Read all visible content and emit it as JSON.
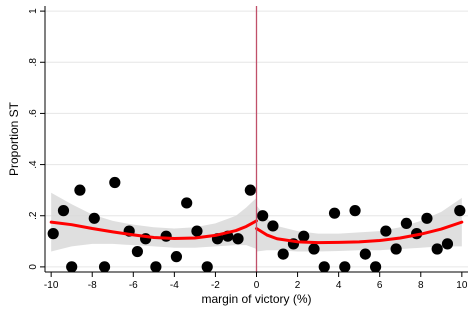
{
  "chart_data": {
    "type": "scatter",
    "title": "",
    "xlabel": "margin of victory (%)",
    "ylabel": "Proportion ST",
    "xlim": [
      -10.3,
      10.3
    ],
    "ylim": [
      -0.02,
      1.02
    ],
    "xticks": [
      -10,
      -8,
      -6,
      -4,
      -2,
      0,
      2,
      4,
      6,
      8,
      10
    ],
    "xtick_labels": [
      "-10",
      "-8",
      "-6",
      "-4",
      "-2",
      "0",
      "2",
      "4",
      "6",
      "8",
      "10"
    ],
    "yticks": [
      0,
      0.2,
      0.4,
      0.6,
      0.8,
      1
    ],
    "ytick_labels": [
      "0",
      ".2",
      ".4",
      ".6",
      ".8",
      "1"
    ],
    "grid": "horizontal",
    "cutoff_x": 0,
    "colors": {
      "points": "#000000",
      "fit": "#ff0000",
      "ci_band": "#d9d9d9",
      "cutoff": "#c0506a",
      "grid": "#e6e6e6"
    },
    "points": [
      {
        "x": -9.9,
        "y": 0.13
      },
      {
        "x": -9.4,
        "y": 0.22
      },
      {
        "x": -9.0,
        "y": 0.0
      },
      {
        "x": -8.6,
        "y": 0.3
      },
      {
        "x": -7.9,
        "y": 0.19
      },
      {
        "x": -7.4,
        "y": 0.0
      },
      {
        "x": -6.9,
        "y": 0.33
      },
      {
        "x": -6.2,
        "y": 0.14
      },
      {
        "x": -5.8,
        "y": 0.06
      },
      {
        "x": -5.4,
        "y": 0.11
      },
      {
        "x": -4.9,
        "y": 0.0
      },
      {
        "x": -4.4,
        "y": 0.12
      },
      {
        "x": -3.9,
        "y": 0.04
      },
      {
        "x": -3.4,
        "y": 0.25
      },
      {
        "x": -2.9,
        "y": 0.14
      },
      {
        "x": -2.4,
        "y": 0.0
      },
      {
        "x": -1.9,
        "y": 0.11
      },
      {
        "x": -1.4,
        "y": 0.12
      },
      {
        "x": -0.9,
        "y": 0.11
      },
      {
        "x": -0.3,
        "y": 0.3
      },
      {
        "x": 0.3,
        "y": 0.2
      },
      {
        "x": 0.8,
        "y": 0.16
      },
      {
        "x": 1.3,
        "y": 0.05
      },
      {
        "x": 1.8,
        "y": 0.09
      },
      {
        "x": 2.3,
        "y": 0.12
      },
      {
        "x": 2.8,
        "y": 0.07
      },
      {
        "x": 3.3,
        "y": 0.0
      },
      {
        "x": 3.8,
        "y": 0.21
      },
      {
        "x": 4.3,
        "y": 0.0
      },
      {
        "x": 4.8,
        "y": 0.22
      },
      {
        "x": 5.3,
        "y": 0.05
      },
      {
        "x": 5.8,
        "y": 0.0
      },
      {
        "x": 6.3,
        "y": 0.14
      },
      {
        "x": 6.8,
        "y": 0.07
      },
      {
        "x": 7.3,
        "y": 0.17
      },
      {
        "x": 7.8,
        "y": 0.13
      },
      {
        "x": 8.3,
        "y": 0.19
      },
      {
        "x": 8.8,
        "y": 0.07
      },
      {
        "x": 9.3,
        "y": 0.09
      },
      {
        "x": 9.9,
        "y": 0.22
      }
    ],
    "fit_left": [
      {
        "x": -10,
        "y": 0.175,
        "lo": 0.06,
        "hi": 0.29
      },
      {
        "x": -9,
        "y": 0.165,
        "lo": 0.08,
        "hi": 0.245
      },
      {
        "x": -8,
        "y": 0.15,
        "lo": 0.09,
        "hi": 0.205
      },
      {
        "x": -7,
        "y": 0.137,
        "lo": 0.09,
        "hi": 0.18
      },
      {
        "x": -6,
        "y": 0.125,
        "lo": 0.085,
        "hi": 0.165
      },
      {
        "x": -5,
        "y": 0.115,
        "lo": 0.08,
        "hi": 0.155
      },
      {
        "x": -4,
        "y": 0.111,
        "lo": 0.075,
        "hi": 0.15
      },
      {
        "x": -3,
        "y": 0.113,
        "lo": 0.075,
        "hi": 0.155
      },
      {
        "x": -2,
        "y": 0.123,
        "lo": 0.08,
        "hi": 0.17
      },
      {
        "x": -1,
        "y": 0.142,
        "lo": 0.085,
        "hi": 0.2
      },
      {
        "x": -0.5,
        "y": 0.158,
        "lo": 0.085,
        "hi": 0.232
      },
      {
        "x": 0,
        "y": 0.18,
        "lo": 0.07,
        "hi": 0.27
      }
    ],
    "fit_right": [
      {
        "x": 0,
        "y": 0.15,
        "lo": 0.06,
        "hi": 0.24
      },
      {
        "x": 0.5,
        "y": 0.125,
        "lo": 0.065,
        "hi": 0.19
      },
      {
        "x": 1,
        "y": 0.11,
        "lo": 0.065,
        "hi": 0.16
      },
      {
        "x": 2,
        "y": 0.098,
        "lo": 0.06,
        "hi": 0.14
      },
      {
        "x": 3,
        "y": 0.095,
        "lo": 0.06,
        "hi": 0.13
      },
      {
        "x": 4,
        "y": 0.096,
        "lo": 0.062,
        "hi": 0.13
      },
      {
        "x": 5,
        "y": 0.098,
        "lo": 0.065,
        "hi": 0.135
      },
      {
        "x": 6,
        "y": 0.103,
        "lo": 0.065,
        "hi": 0.14
      },
      {
        "x": 7,
        "y": 0.113,
        "lo": 0.07,
        "hi": 0.155
      },
      {
        "x": 8,
        "y": 0.128,
        "lo": 0.075,
        "hi": 0.18
      },
      {
        "x": 9,
        "y": 0.148,
        "lo": 0.08,
        "hi": 0.215
      },
      {
        "x": 10,
        "y": 0.175,
        "lo": 0.08,
        "hi": 0.27
      }
    ]
  }
}
